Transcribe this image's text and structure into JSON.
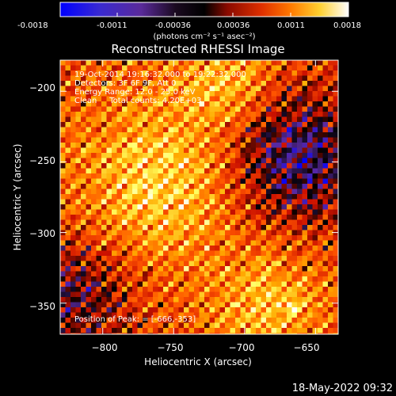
{
  "footer_timestamp": "18-May-2022 09:32",
  "colorbar": {
    "ticks": [
      "-0.0018",
      "-0.0011",
      "-0.00036",
      "0.00036",
      "0.0011",
      "0.0018"
    ],
    "unit_label": "(photons cm⁻² s⁻¹ asec⁻²)"
  },
  "chart_data": {
    "type": "heatmap",
    "title": "Reconstructed RHESSI Image",
    "xlabel": "Heliocentric X (arcsec)",
    "ylabel": "Heliocentric Y (arcsec)",
    "xlim": [
      -830,
      -634
    ],
    "ylim": [
      -372,
      -178
    ],
    "x_ticks": [
      -800,
      -750,
      -700,
      -650
    ],
    "y_ticks": [
      -200,
      -250,
      -300,
      -350
    ],
    "x_tick_labels": [
      "−800",
      "−750",
      "−700",
      "−650"
    ],
    "y_tick_labels": [
      "−200",
      "−250",
      "−300",
      "−350"
    ],
    "value_range": [
      -0.0018,
      0.0018
    ],
    "colormap": "RHESSI red-temperature (blue → purple → black → red → orange → yellow → white)",
    "colors": [
      "#0000ff",
      "#5a2aa0",
      "#000000",
      "#cc1100",
      "#ff5500",
      "#ffaa00",
      "#ffff60",
      "#ffffff"
    ],
    "peak": {
      "x": -666,
      "y": -353
    },
    "annotations": [
      "19-Oct-2014 19:16:32.000 to 19:22:32.000",
      "Detectors: 3F 6F 9F, Att 0",
      "Energy Range: 12.0 - 25.0 keV",
      "Clean     Total counts: 4.20E+03",
      "Position of Peak: = [-666,-353]"
    ]
  }
}
